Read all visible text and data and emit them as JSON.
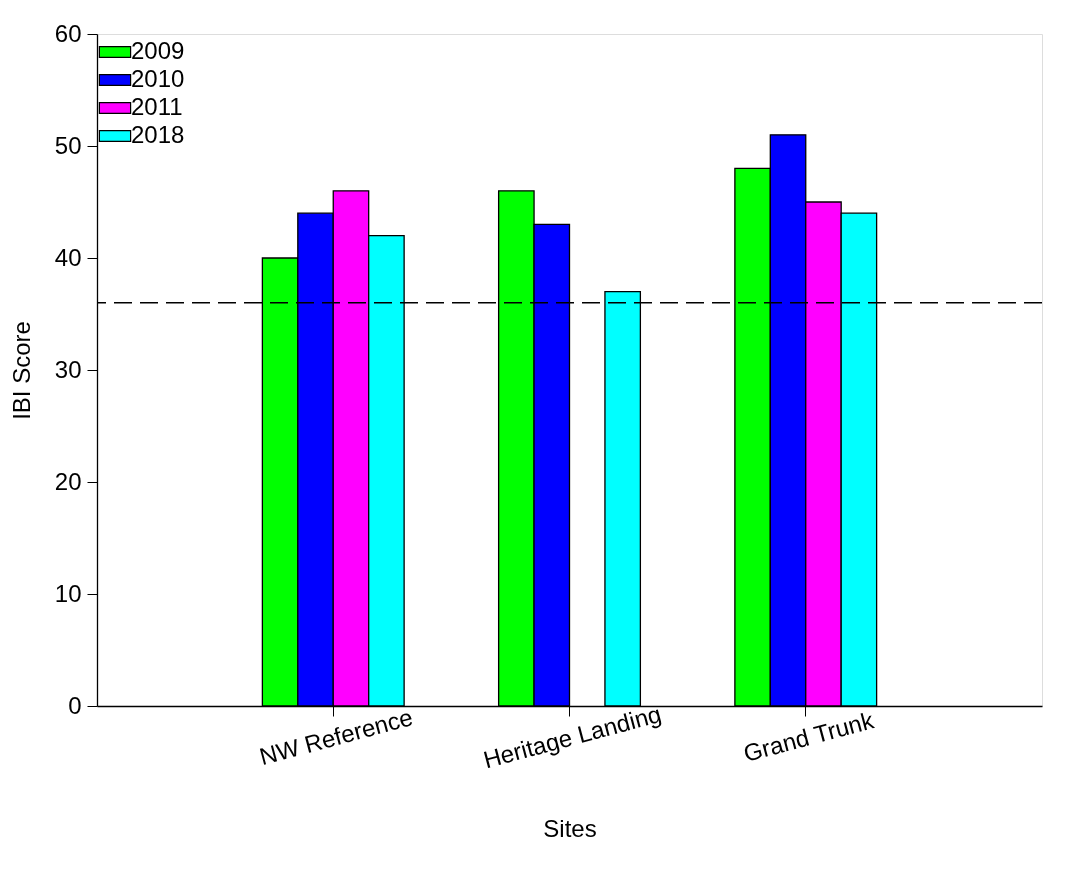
{
  "chart_data": {
    "type": "bar",
    "xlabel": "Sites",
    "ylabel": "IBI Score",
    "categories": [
      "NW Reference",
      "Heritage Landing",
      "Grand Trunk"
    ],
    "series": [
      {
        "name": "2009",
        "color": "#00ff00",
        "values": [
          40,
          46,
          48
        ]
      },
      {
        "name": "2010",
        "color": "#0000ff",
        "values": [
          44,
          43,
          51
        ]
      },
      {
        "name": "2011",
        "color": "#ff00ff",
        "values": [
          46,
          null,
          45
        ]
      },
      {
        "name": "2018",
        "color": "#00ffff",
        "values": [
          42,
          37,
          44
        ]
      }
    ],
    "ylim": [
      0,
      60
    ],
    "yticks": [
      0,
      10,
      20,
      30,
      40,
      50,
      60
    ],
    "ref_lines": [
      {
        "axis": "y",
        "value": 36,
        "line_style": "dashed",
        "color": "#000000"
      }
    ],
    "grid": false,
    "legend": "top left"
  }
}
